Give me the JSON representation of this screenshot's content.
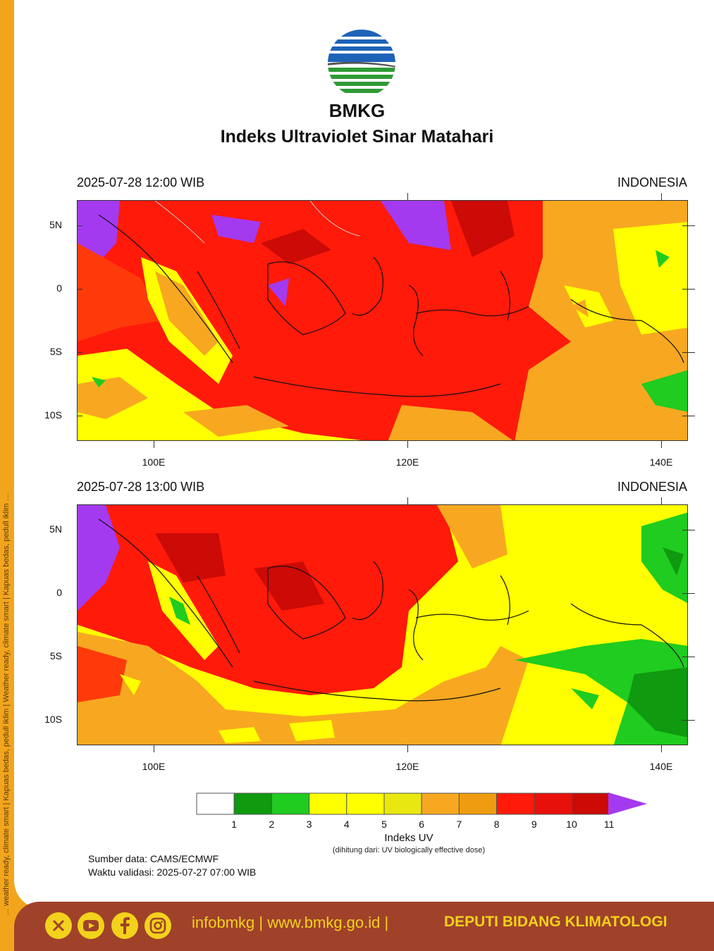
{
  "side_strip": {
    "text": "… weather ready, climate smart | Kapuas bedas, pedull iklim | Weather ready, climate smart | Kapuas bedas, pedull iklim …"
  },
  "header": {
    "brand": "BMKG",
    "title": "Indeks Ultraviolet Sinar Matahari"
  },
  "panels": [
    {
      "date": "2025-07-28  12:00 WIB",
      "region": "INDONESIA"
    },
    {
      "date": "2025-07-28  13:00 WIB",
      "region": "INDONESIA"
    }
  ],
  "axes": {
    "lat_labels": [
      "5N",
      "0",
      "5S",
      "10S"
    ],
    "lon_labels": [
      "100E",
      "120E",
      "140E"
    ]
  },
  "legend": {
    "title": "Indeks UV",
    "subtitle": "(dihitung dari: UV biologically effective dose)",
    "tick_labels": [
      "1",
      "2",
      "3",
      "4",
      "5",
      "6",
      "7",
      "8",
      "9",
      "10",
      "11"
    ],
    "colors": [
      "#ffffff",
      "#0f9a0f",
      "#1fcc1f",
      "#ffff00",
      "#ffff00",
      "#e8e810",
      "#f7a820",
      "#ee9d10",
      "#ff1a0a",
      "#e8100a",
      "#cc0a06"
    ],
    "overflow_color": "#a33af0"
  },
  "footnote": {
    "source": "Sumber data: CAMS/ECMWF",
    "validity": "Waktu validasi: 2025-07-27 07:00 WIB"
  },
  "footer": {
    "social_icons": [
      "x-icon",
      "youtube-icon",
      "facebook-icon",
      "instagram-icon"
    ],
    "links": "infobmkg  |  www.bmkg.go.id  |",
    "department": "DEPUTI BIDANG KLIMATOLOGI"
  }
}
